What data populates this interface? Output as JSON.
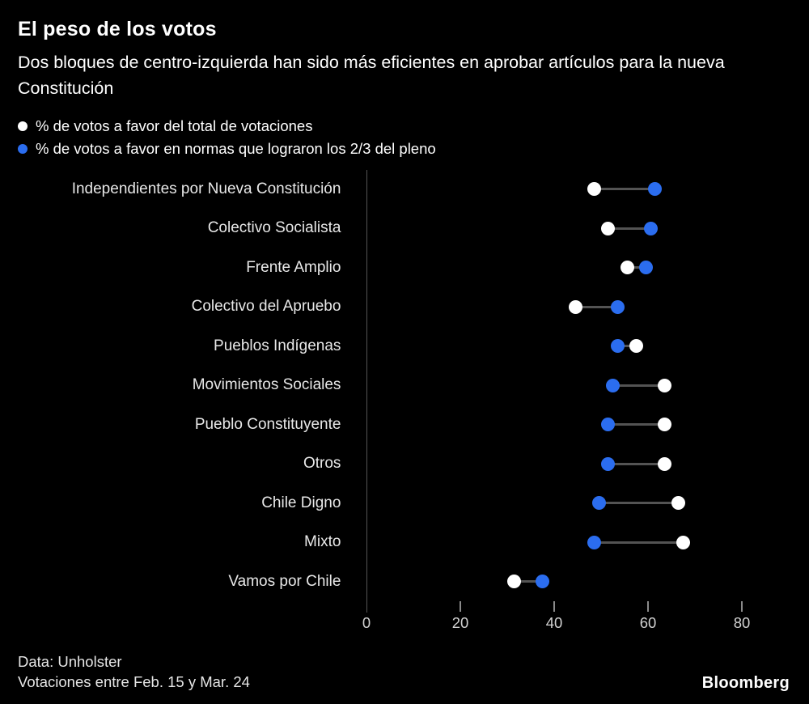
{
  "header": {
    "title": "El peso de los votos",
    "subtitle": "Dos bloques de centro-izquierda han sido más eficientes en aprobar artículos para la nueva Constitución"
  },
  "legend": [
    {
      "label": "% de votos a favor del total de votaciones",
      "color": "#ffffff",
      "icon": "white-dot-icon"
    },
    {
      "label": "% de votos a favor en normas que lograron los 2/3 del pleno",
      "color": "#2b6def",
      "icon": "blue-dot-icon"
    }
  ],
  "chart_data": {
    "type": "dumbbell",
    "categories": [
      "Independientes por Nueva Constitución",
      "Colectivo Socialista",
      "Frente Amplio",
      "Colectivo del Apruebo",
      "Pueblos Indígenas",
      "Movimientos Sociales",
      "Pueblo Constituyente",
      "Otros",
      "Chile Digno",
      "Mixto",
      "Vamos por Chile"
    ],
    "series": [
      {
        "name": "% de votos a favor del total de votaciones",
        "color": "#ffffff",
        "values": [
          50,
          53,
          57,
          46,
          59,
          65,
          65,
          65,
          68,
          69,
          33
        ]
      },
      {
        "name": "% de votos a favor en normas que lograron los 2/3 del pleno",
        "color": "#2b6def",
        "values": [
          63,
          62,
          61,
          55,
          55,
          54,
          53,
          53,
          51,
          50,
          39
        ]
      }
    ],
    "x_ticks": [
      0,
      20,
      40,
      60,
      80
    ],
    "xlim": [
      0,
      94
    ],
    "grid": false,
    "legend_position": "top-left",
    "connector_color": "#535353"
  },
  "footer": {
    "source": "Data: Unholster",
    "note": "Votaciones entre Feb. 15 y Mar. 24",
    "brand": "Bloomberg"
  }
}
